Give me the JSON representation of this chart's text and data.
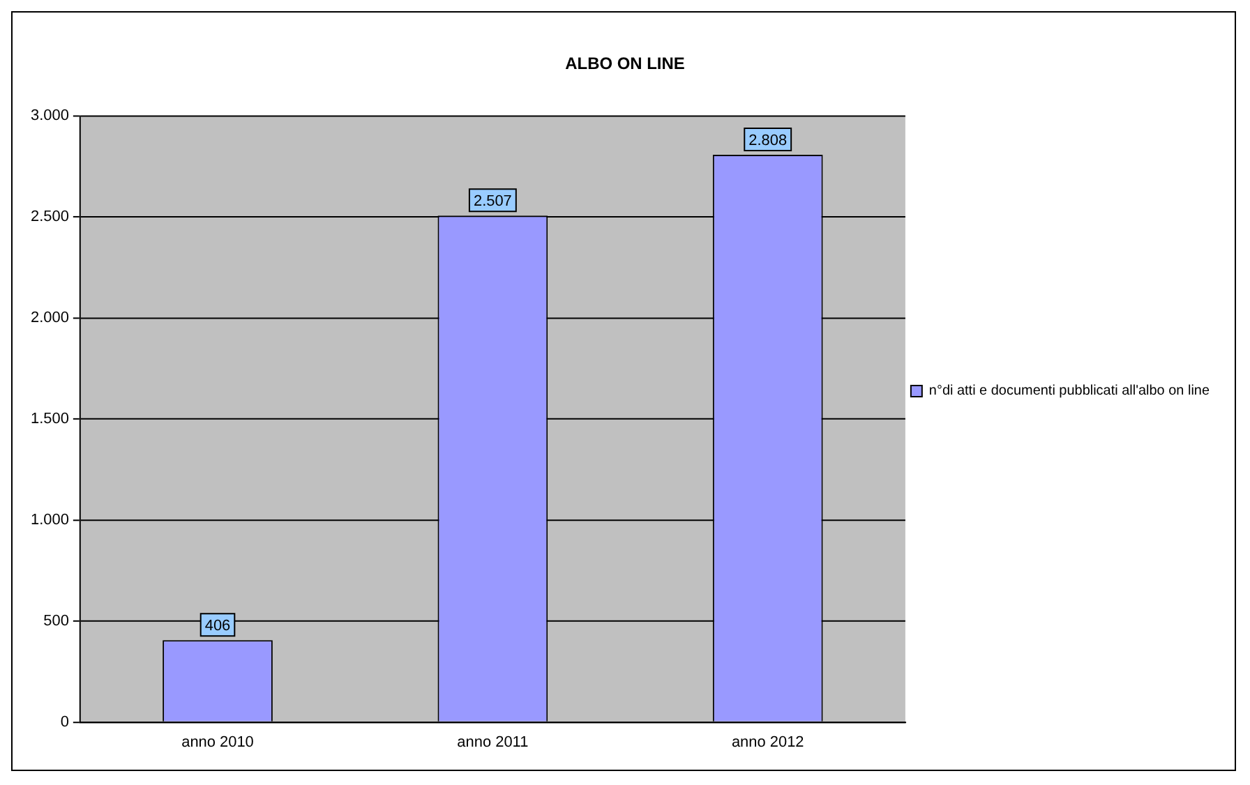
{
  "chart_data": {
    "type": "bar",
    "title": "ALBO ON LINE",
    "categories": [
      "anno 2010",
      "anno 2011",
      "anno 2012"
    ],
    "series": [
      {
        "name": "n°di atti e documenti pubblicati all'albo on line",
        "color": "#9999ff",
        "values": [
          406,
          2507,
          2808
        ],
        "value_labels": [
          "406",
          "2.507",
          "2.808"
        ]
      }
    ],
    "ylim": [
      0,
      3000
    ],
    "yticks": [
      {
        "value": 0,
        "label": "0"
      },
      {
        "value": 500,
        "label": "500"
      },
      {
        "value": 1000,
        "label": "1.000"
      },
      {
        "value": 1500,
        "label": "1.500"
      },
      {
        "value": 2000,
        "label": "2.000"
      },
      {
        "value": 2500,
        "label": "2.500"
      },
      {
        "value": 3000,
        "label": "3.000"
      }
    ],
    "grid": "y",
    "legend": "right"
  }
}
